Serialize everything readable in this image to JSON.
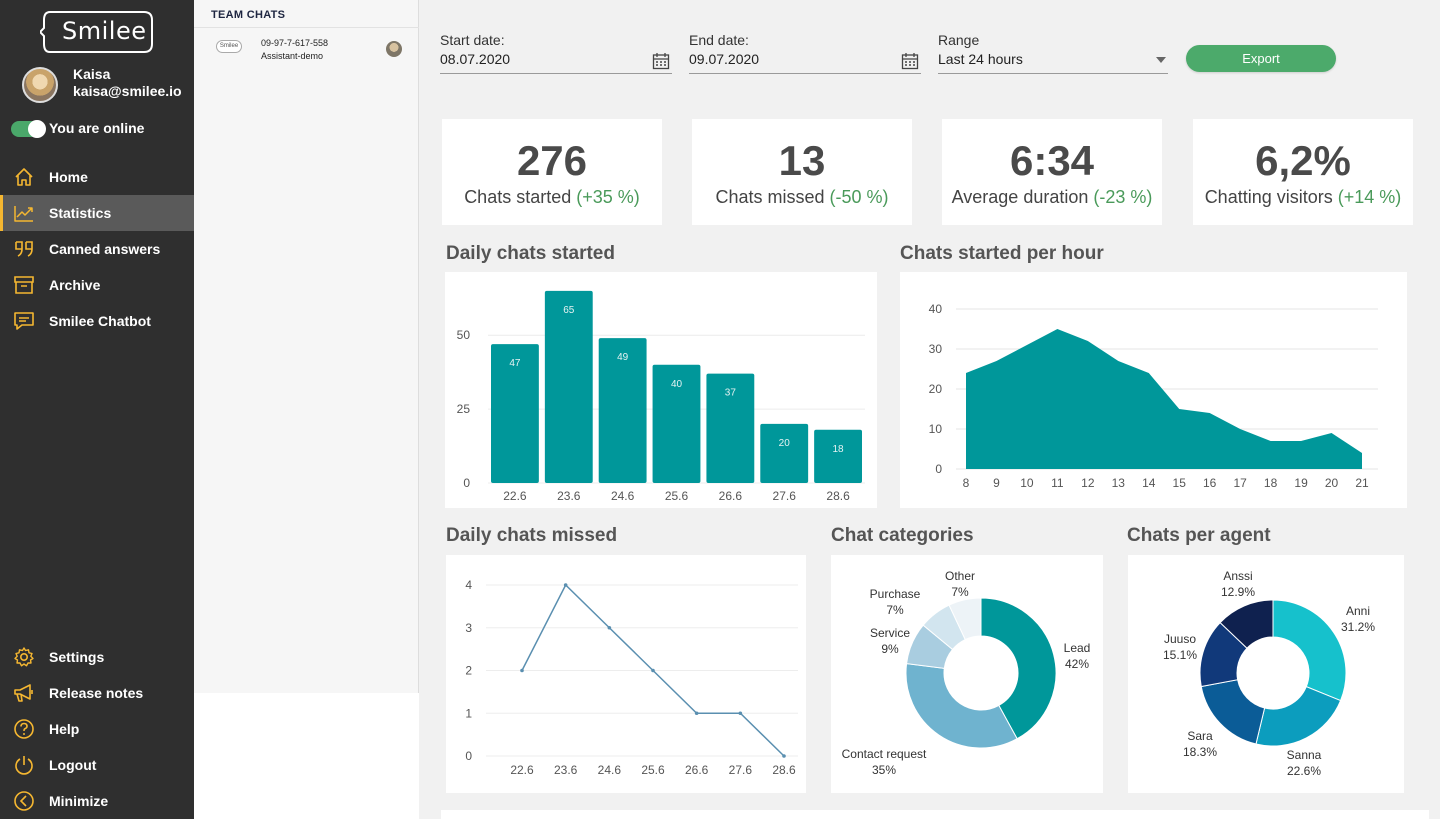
{
  "sidebar": {
    "logo_text": "Smilee",
    "user": {
      "name": "Kaisa",
      "email": "kaisa@smilee.io"
    },
    "online_label": "You are online",
    "nav_top": [
      {
        "label": "Home",
        "icon": "home-icon",
        "active": false
      },
      {
        "label": "Statistics",
        "icon": "statistics-icon",
        "active": true
      },
      {
        "label": "Canned answers",
        "icon": "quote-icon",
        "active": false
      },
      {
        "label": "Archive",
        "icon": "archive-icon",
        "active": false
      },
      {
        "label": "Smilee Chatbot",
        "icon": "chat-icon",
        "active": false
      }
    ],
    "nav_bottom": [
      {
        "label": "Settings",
        "icon": "gear-icon"
      },
      {
        "label": "Release notes",
        "icon": "megaphone-icon"
      },
      {
        "label": "Help",
        "icon": "help-icon"
      },
      {
        "label": "Logout",
        "icon": "power-icon"
      },
      {
        "label": "Minimize",
        "icon": "minimize-icon"
      }
    ]
  },
  "chat_panel": {
    "title": "TEAM CHATS",
    "chats": [
      {
        "logo": "Smilee",
        "phone": "09-97-7-617-558",
        "site": "Assistant-demo"
      }
    ]
  },
  "filters": {
    "start_label": "Start date:",
    "start_value": "08.07.2020",
    "end_label": "End date:",
    "end_value": "09.07.2020",
    "range_label": "Range",
    "range_value": "Last 24 hours",
    "export_label": "Export"
  },
  "kpis": [
    {
      "value": "276",
      "label": "Chats started",
      "change": "(+35 %)"
    },
    {
      "value": "13",
      "label": "Chats missed",
      "change": "(-50 %)"
    },
    {
      "value": "6:34",
      "label": "Average duration",
      "change": "(-23 %)"
    },
    {
      "value": "6,2%",
      "label": "Chatting visitors",
      "change": "(+14 %)"
    }
  ],
  "colors": {
    "teal": "#00979a",
    "accent": "#f5b731",
    "green": "#4caa6b",
    "line": "#5a8fb0"
  },
  "sections": {
    "daily_started": "Daily chats started",
    "per_hour": "Chats started per hour",
    "daily_missed": "Daily chats missed",
    "categories": "Chat categories",
    "per_agent": "Chats per agent"
  },
  "chart_data": [
    {
      "type": "bar",
      "title": "Daily chats started",
      "categories": [
        "22.6",
        "23.6",
        "24.6",
        "25.6",
        "26.6",
        "27.6",
        "28.6"
      ],
      "values": [
        47,
        65,
        49,
        40,
        37,
        20,
        18
      ],
      "yticks": [
        0,
        25,
        50
      ],
      "ylim": [
        0,
        68
      ],
      "grid": true
    },
    {
      "type": "area",
      "title": "Chats started per hour",
      "x": [
        8,
        9,
        10,
        11,
        12,
        13,
        14,
        15,
        16,
        17,
        18,
        19,
        20,
        21
      ],
      "values": [
        24,
        27,
        31,
        35,
        32,
        27,
        24,
        15,
        14,
        10,
        7,
        7,
        9,
        4
      ],
      "yticks": [
        0,
        10,
        20,
        30,
        40
      ],
      "ylim": [
        0,
        40
      ],
      "grid": true
    },
    {
      "type": "line",
      "title": "Daily chats missed",
      "categories": [
        "22.6",
        "23.6",
        "24.6",
        "25.6",
        "26.6",
        "27.6",
        "28.6"
      ],
      "values": [
        2,
        4,
        3,
        2,
        1,
        1,
        0
      ],
      "yticks": [
        0,
        1,
        2,
        3,
        4
      ],
      "ylim": [
        0,
        4
      ],
      "grid": true
    },
    {
      "type": "pie",
      "title": "Chat categories",
      "labels": [
        "Lead",
        "Contact request",
        "Service",
        "Purchase",
        "Other"
      ],
      "values": [
        42,
        35,
        9,
        7,
        7
      ],
      "display": [
        "42%",
        "35%",
        "9%",
        "7%",
        "7%"
      ],
      "colors": [
        "#00979a",
        "#6fb3cf",
        "#a9cde0",
        "#d2e5ef",
        "#edf3f7"
      ]
    },
    {
      "type": "pie",
      "title": "Chats per agent",
      "labels": [
        "Anni",
        "Sanna",
        "Sara",
        "Juuso",
        "Anssi"
      ],
      "values": [
        31.2,
        22.6,
        18.3,
        15.1,
        12.9
      ],
      "display": [
        "31.2%",
        "22.6%",
        "18.3%",
        "15.1%",
        "12.9%"
      ],
      "colors": [
        "#16c1cc",
        "#0c9dbe",
        "#0b5c97",
        "#11397a",
        "#0f214f"
      ]
    }
  ]
}
